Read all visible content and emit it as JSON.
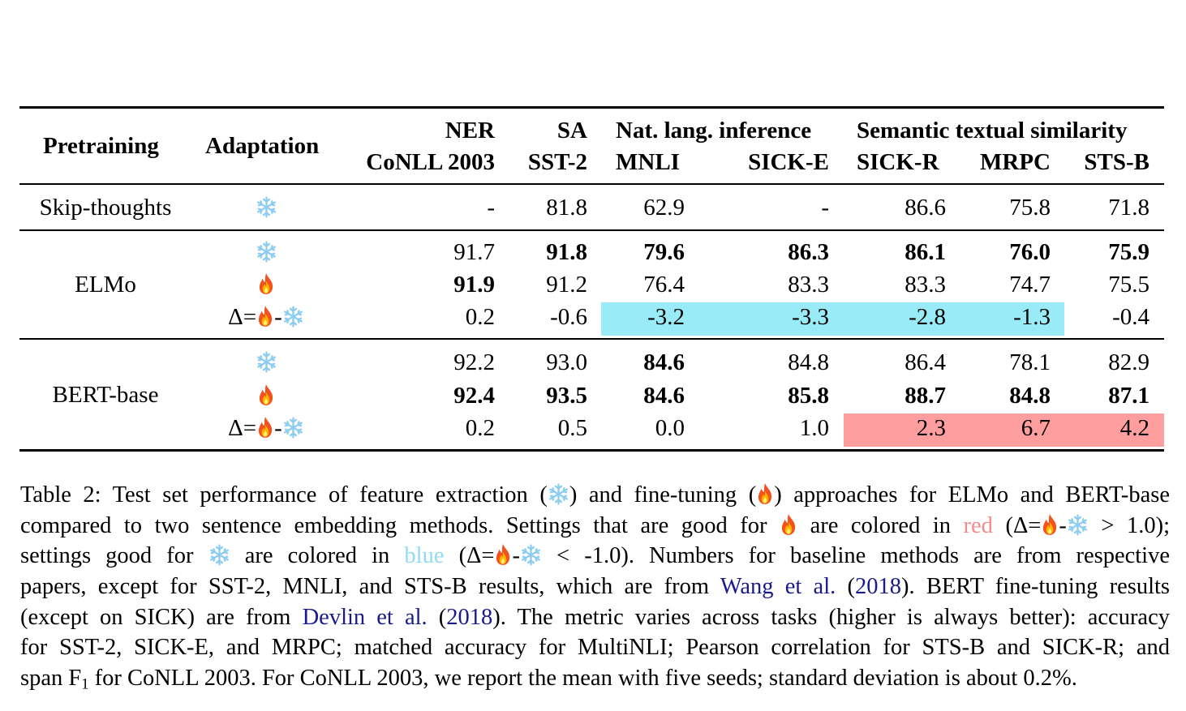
{
  "table": {
    "header": {
      "pretraining": "Pretraining",
      "adaptation": "Adaptation",
      "groups": {
        "ner": "NER",
        "sa": "SA",
        "nli": "Nat. lang. inference",
        "sts": "Semantic textual similarity"
      },
      "columns": [
        "CoNLL 2003",
        "SST-2",
        "MNLI",
        "SICK-E",
        "SICK-R",
        "MRPC",
        "STS-B"
      ]
    },
    "delta_prefix": "Δ=",
    "delta_minus": "-",
    "icons": {
      "feature_extraction": "snowflake-icon",
      "fine_tuning": "fire-icon"
    },
    "rows": [
      {
        "pretraining": "Skip-thoughts",
        "adaptation": "feature_extraction",
        "values": [
          "-",
          "81.8",
          "62.9",
          "-",
          "86.6",
          "75.8",
          "71.8"
        ]
      },
      {
        "pretraining": "ELMo",
        "adaptation": "feature_extraction",
        "values": [
          "91.7",
          "91.8",
          "79.6",
          "86.3",
          "86.1",
          "76.0",
          "75.9"
        ]
      },
      {
        "pretraining": "",
        "adaptation": "fine_tuning",
        "values": [
          "91.9",
          "91.2",
          "76.4",
          "83.3",
          "83.3",
          "74.7",
          "75.5"
        ]
      },
      {
        "pretraining": "",
        "adaptation": "delta",
        "values": [
          "0.2",
          "-0.6",
          "-3.2",
          "-3.3",
          "-2.8",
          "-1.3",
          "-0.4"
        ]
      },
      {
        "pretraining": "BERT-base",
        "adaptation": "feature_extraction",
        "values": [
          "92.2",
          "93.0",
          "84.6",
          "84.8",
          "86.4",
          "78.1",
          "82.9"
        ]
      },
      {
        "pretraining": "",
        "adaptation": "fine_tuning",
        "values": [
          "92.4",
          "93.5",
          "84.6",
          "85.8",
          "88.7",
          "84.8",
          "87.1"
        ]
      },
      {
        "pretraining": "",
        "adaptation": "delta",
        "values": [
          "0.2",
          "0.5",
          "0.0",
          "1.0",
          "2.3",
          "6.7",
          "4.2"
        ]
      }
    ],
    "colors": {
      "blue_highlight": "#99EBF7",
      "red_highlight": "#FF9E9E"
    }
  },
  "caption": {
    "l1a": "Table 2: Test set performance of feature extraction (",
    "l1b": ") and fine-tuning (",
    "l1c": ") approaches for ELMo and BERT-base",
    "l2a": "compared to two sentence embedding methods. Settings that are good for ",
    "l2b": " are colored in ",
    "l2red": "red",
    "l2c": " (Δ=",
    "l2d": "-",
    "l2e": " > 1.0);",
    "l3a": "settings good for ",
    "l3b": " are colored in ",
    "l3blue": "blue",
    "l3c": " (Δ=",
    "l3d": "-",
    "l3e": " < -1.0).  Numbers for baseline methods are from respective",
    "l4a": "papers, except for SST-2, MNLI, and STS-B results, which are from ",
    "l4cite": "Wang et al.",
    "l4b": " (",
    "l4year": "2018",
    "l4c": "). BERT fine-tuning results",
    "l5a": "(except on SICK) are from ",
    "l5cite": "Devlin et al.",
    "l5b": " (",
    "l5year": "2018",
    "l5c": "). The metric varies across tasks (higher is always better): accuracy",
    "l6": "for SST-2, SICK-E, and MRPC; matched accuracy for MultiNLI; Pearson correlation for STS-B and SICK-R; and",
    "l7a": "span F",
    "l7sub": "1",
    "l7b": " for CoNLL 2003. For CoNLL 2003, we report the mean with five seeds; standard deviation is about 0.2%."
  }
}
